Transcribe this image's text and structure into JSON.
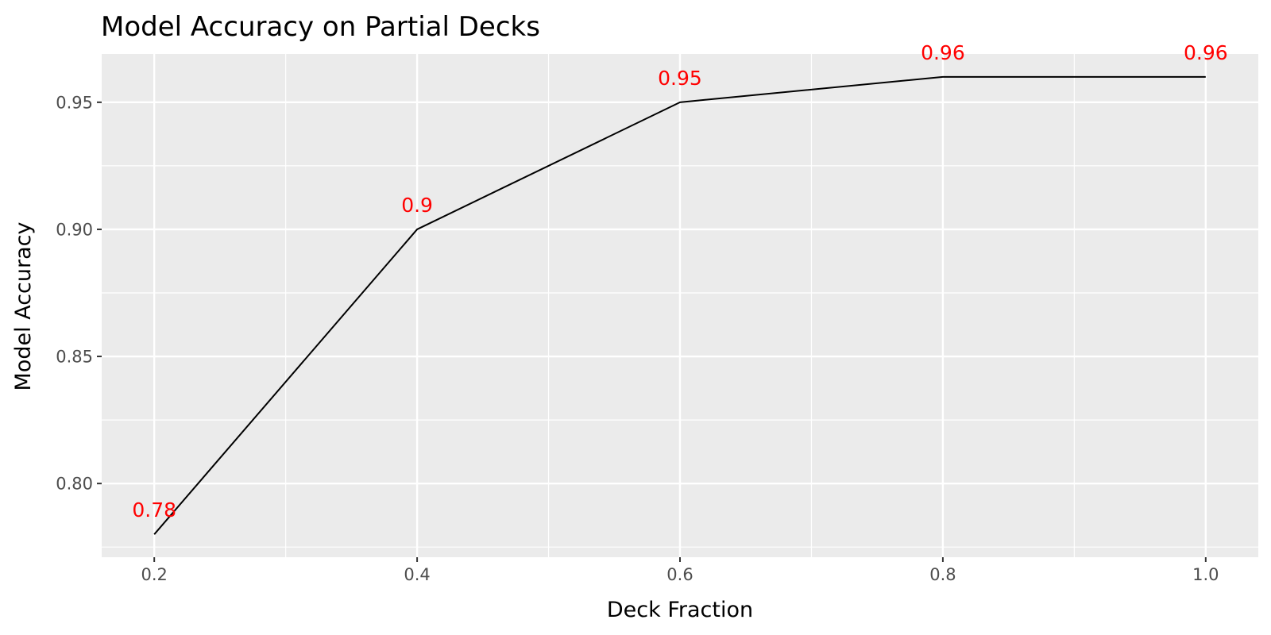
{
  "chart_data": {
    "type": "line",
    "title": "Model Accuracy on Partial Decks",
    "xlabel": "Deck Fraction",
    "ylabel": "Model Accuracy",
    "x": [
      0.2,
      0.4,
      0.6,
      0.8,
      1.0
    ],
    "series": [
      {
        "values": [
          0.78,
          0.9,
          0.95,
          0.96,
          0.96
        ]
      }
    ],
    "data_labels": [
      "0.78",
      "0.9",
      "0.95",
      "0.96",
      "0.96"
    ],
    "xlim": [
      0.16,
      1.04
    ],
    "ylim": [
      0.771,
      0.969
    ],
    "x_ticks": [
      0.2,
      0.4,
      0.6,
      0.8,
      1.0
    ],
    "x_tick_labels": [
      "0.2",
      "0.4",
      "0.6",
      "0.8",
      "1.0"
    ],
    "y_ticks": [
      0.8,
      0.85,
      0.9,
      0.95
    ],
    "y_tick_labels": [
      "0.80",
      "0.85",
      "0.90",
      "0.95"
    ],
    "grid": true,
    "legend": "none",
    "colors": {
      "panel_background": "#ebebeb",
      "grid": "#ffffff",
      "line": "#000000",
      "data_label": "#ff0000",
      "tick_label": "#4d4d4d",
      "tick_mark": "#333333"
    }
  }
}
